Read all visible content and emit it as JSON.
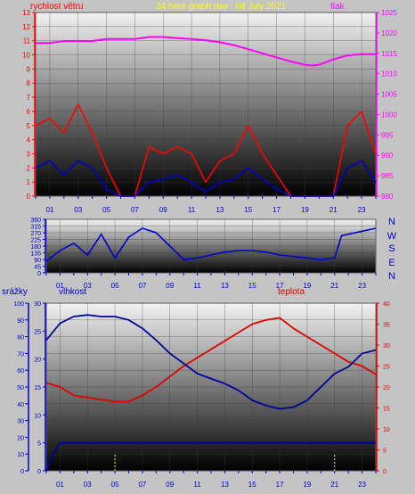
{
  "chart_data": [
    {
      "type": "line",
      "panel": "wind-pressure",
      "title": "24 hour graph day : 08 July 2021",
      "left_label": "rychlost větru",
      "right_label": "tlak",
      "x_ticks": [
        "01",
        "03",
        "05",
        "07",
        "09",
        "11",
        "13",
        "15",
        "17",
        "19",
        "21",
        "23"
      ],
      "x_range": [
        0,
        24
      ],
      "y_left_range": [
        0,
        13
      ],
      "y_left_ticks": [
        "0",
        "1",
        "2",
        "3",
        "4",
        "5",
        "6",
        "7",
        "8",
        "9",
        "10",
        "11",
        "12",
        "13"
      ],
      "y_right_range": [
        980,
        1025
      ],
      "y_right_ticks": [
        "980",
        "985",
        "990",
        "995",
        "1000",
        "1005",
        "1010",
        "1015",
        "1020",
        "1025"
      ],
      "grid": true,
      "series": [
        {
          "color": "#ff00ff",
          "axis": "right",
          "x": [
            0,
            1,
            2,
            3,
            4,
            5,
            6,
            7,
            8,
            9,
            10,
            11,
            12,
            13,
            14,
            15,
            16,
            17,
            18,
            19,
            19.5,
            20,
            21,
            22,
            23,
            24
          ],
          "y": [
            1017.5,
            1017.5,
            1018,
            1018,
            1018,
            1018.5,
            1018.5,
            1018.5,
            1019,
            1019,
            1018.7,
            1018.5,
            1018.2,
            1017.7,
            1017,
            1016,
            1015,
            1014,
            1013,
            1012.2,
            1012,
            1012.2,
            1013.5,
            1014.5,
            1014.8,
            1014.8
          ]
        },
        {
          "color": "#ff0000",
          "axis": "left",
          "x": [
            0,
            1,
            2,
            3,
            4,
            5,
            6,
            7,
            8,
            9,
            10,
            11,
            12,
            13,
            14,
            15,
            16,
            17,
            18,
            19,
            20,
            21,
            22,
            23,
            24
          ],
          "y": [
            5,
            5.5,
            4.5,
            6.5,
            4.5,
            2,
            0,
            0,
            3.5,
            3,
            3.5,
            3,
            1,
            2.5,
            3,
            5,
            3,
            1.5,
            0,
            0,
            0,
            0,
            5,
            6,
            3
          ]
        },
        {
          "color": "#0000cc",
          "axis": "left",
          "x": [
            0,
            1,
            2,
            3,
            4,
            5,
            6,
            7,
            8,
            9,
            10,
            11,
            12,
            13,
            14,
            15,
            16,
            17,
            18,
            19,
            20,
            21,
            22,
            23,
            24
          ],
          "y": [
            2,
            2.5,
            1.5,
            2.5,
            2,
            0.5,
            0,
            0,
            1,
            1.2,
            1.5,
            1,
            0.3,
            1,
            1.2,
            2,
            1.2,
            0.5,
            0,
            0,
            0,
            0,
            2,
            2.5,
            1
          ]
        }
      ]
    },
    {
      "type": "line",
      "panel": "wind-direction",
      "x_ticks": [
        "01",
        "03",
        "05",
        "07",
        "09",
        "11",
        "13",
        "15",
        "17",
        "19",
        "21",
        "23"
      ],
      "x_range": [
        0,
        24
      ],
      "y_range": [
        0,
        360
      ],
      "y_ticks": [
        "0",
        "45",
        "90",
        "135",
        "180",
        "225",
        "270",
        "315",
        "360"
      ],
      "compass": [
        "N",
        "W",
        "S",
        "E",
        "N"
      ],
      "grid": true,
      "series": [
        {
          "color": "#0000cc",
          "x": [
            0,
            1,
            2,
            3,
            4,
            5,
            6,
            7,
            8,
            9,
            10,
            11,
            12,
            13,
            14,
            15,
            16,
            17,
            18,
            19,
            20,
            21,
            21.5,
            22,
            23,
            24
          ],
          "y": [
            80,
            150,
            200,
            120,
            260,
            100,
            240,
            300,
            270,
            180,
            90,
            100,
            120,
            140,
            150,
            150,
            140,
            120,
            110,
            100,
            90,
            100,
            250,
            260,
            280,
            300
          ]
        }
      ]
    },
    {
      "type": "line",
      "panel": "rain-humidity-temperature",
      "labels": {
        "rain": "srážky",
        "humidity": "vlhkost",
        "temperature": "teplota"
      },
      "x_ticks": [
        "01",
        "03",
        "05",
        "07",
        "09",
        "11",
        "13",
        "15",
        "17",
        "19",
        "21",
        "23"
      ],
      "x_range": [
        0,
        24
      ],
      "y_humidity_range": [
        0,
        100
      ],
      "y_humidity_ticks": [
        "0",
        "10",
        "20",
        "30",
        "40",
        "50",
        "60",
        "70",
        "80",
        "90",
        "100"
      ],
      "y_rain_range": [
        0,
        30
      ],
      "y_rain_ticks": [
        "0",
        "5",
        "10",
        "15",
        "20",
        "25",
        "30"
      ],
      "y_temp_range": [
        0,
        40
      ],
      "y_temp_ticks": [
        "0",
        "5",
        "10",
        "15",
        "20",
        "25",
        "30",
        "35",
        "40"
      ],
      "grid": true,
      "series": [
        {
          "name": "teplota",
          "color": "#dd0000",
          "axis": "temp",
          "x": [
            0,
            1,
            2,
            3,
            4,
            5,
            6,
            7,
            8,
            9,
            10,
            11,
            12,
            13,
            14,
            15,
            16,
            17,
            18,
            19,
            20,
            21,
            22,
            23,
            24
          ],
          "y": [
            21,
            20,
            18,
            17.5,
            17,
            16.5,
            16.5,
            18,
            20,
            22.5,
            25,
            27,
            29,
            31,
            33,
            35,
            36,
            36.5,
            34,
            32,
            30,
            28,
            26,
            25,
            23
          ]
        },
        {
          "name": "vlhkost",
          "color": "#000099",
          "axis": "humidity",
          "x": [
            0,
            1,
            2,
            3,
            4,
            5,
            6,
            7,
            8,
            9,
            10,
            11,
            12,
            13,
            14,
            15,
            16,
            17,
            18,
            19,
            20,
            21,
            22,
            23,
            24
          ],
          "y": [
            78,
            88,
            92,
            93,
            92,
            92,
            90,
            85,
            78,
            70,
            64,
            58,
            55,
            52,
            48,
            42,
            39,
            37,
            38,
            42,
            50,
            58,
            62,
            70,
            72
          ]
        },
        {
          "name": "srážky",
          "color": "#000099",
          "axis": "rain",
          "x": [
            0,
            0.5,
            1,
            2,
            3,
            4,
            5,
            6,
            7,
            8,
            9,
            10,
            11,
            12,
            13,
            14,
            15,
            16,
            17,
            18,
            19,
            20,
            21,
            22,
            23,
            24
          ],
          "y": [
            0,
            3,
            5,
            5,
            5,
            5,
            5,
            5,
            5,
            5,
            5,
            5,
            5,
            5,
            5,
            5,
            5,
            5,
            5,
            5,
            5,
            5,
            5,
            5,
            5,
            5
          ]
        }
      ]
    }
  ]
}
